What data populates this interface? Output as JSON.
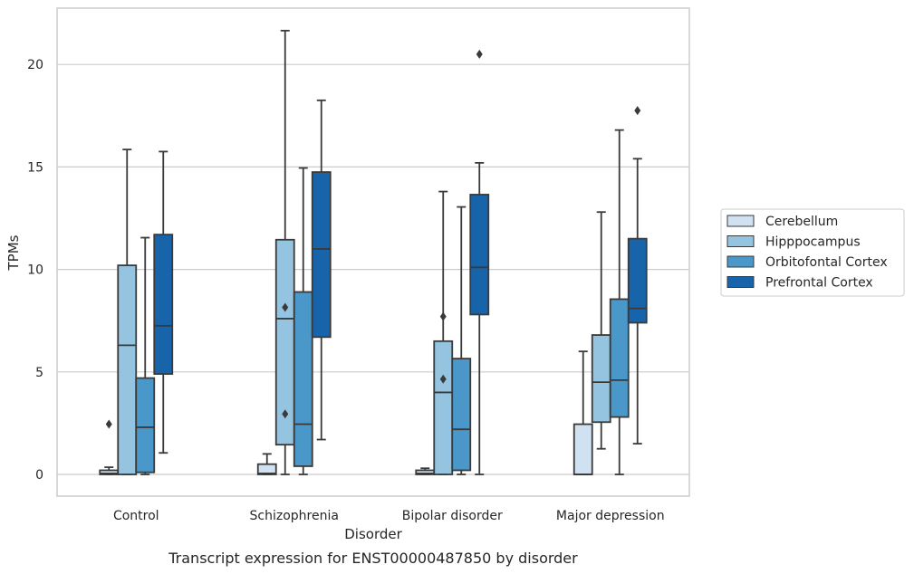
{
  "chart_data": {
    "type": "box",
    "xlabel": "Disorder",
    "ylabel": "TPMs",
    "caption": "Transcript expression for ENST00000487850 by disorder",
    "ylim": [
      -1.05,
      22.6
    ],
    "yticks": [
      0,
      5,
      10,
      15,
      20
    ],
    "grid": true,
    "legend_position": "right",
    "categories": [
      "Control",
      "Schizophrenia",
      "Bipolar disorder",
      "Major depression"
    ],
    "series": [
      {
        "name": "Cerebellum",
        "color": "#d0e1f2",
        "boxes": [
          {
            "whisker_low": 0,
            "q1": 0,
            "median": 0.05,
            "q3": 0.2,
            "whisker_high": 0.35,
            "outliers": [
              2.45
            ]
          },
          {
            "whisker_low": 0,
            "q1": 0,
            "median": 0.05,
            "q3": 0.5,
            "whisker_high": 1.0,
            "outliers": []
          },
          {
            "whisker_low": 0,
            "q1": 0,
            "median": 0.05,
            "q3": 0.2,
            "whisker_high": 0.3,
            "outliers": []
          },
          {
            "whisker_low": 0,
            "q1": 0,
            "median": 0.0,
            "q3": 2.45,
            "whisker_high": 6.0,
            "outliers": []
          }
        ]
      },
      {
        "name": "Hipppocampus",
        "color": "#94c4df",
        "boxes": [
          {
            "whisker_low": 0,
            "q1": 0,
            "median": 6.3,
            "q3": 10.2,
            "whisker_high": 15.85,
            "outliers": []
          },
          {
            "whisker_low": 0,
            "q1": 1.45,
            "median": 7.6,
            "q3": 11.45,
            "whisker_high": 21.65,
            "outliers": [
              8.15,
              2.95
            ]
          },
          {
            "whisker_low": 0,
            "q1": 0,
            "median": 4.0,
            "q3": 6.5,
            "whisker_high": 13.8,
            "outliers": [
              7.7,
              4.65
            ]
          },
          {
            "whisker_low": 1.25,
            "q1": 2.55,
            "median": 4.5,
            "q3": 6.8,
            "whisker_high": 12.8,
            "outliers": []
          }
        ]
      },
      {
        "name": "Orbitofontal Cortex",
        "color": "#4a98c9",
        "boxes": [
          {
            "whisker_low": 0,
            "q1": 0.1,
            "median": 2.3,
            "q3": 4.7,
            "whisker_high": 11.55,
            "outliers": []
          },
          {
            "whisker_low": 0,
            "q1": 0.4,
            "median": 2.45,
            "q3": 8.9,
            "whisker_high": 14.95,
            "outliers": []
          },
          {
            "whisker_low": 0,
            "q1": 0.2,
            "median": 2.2,
            "q3": 5.65,
            "whisker_high": 13.05,
            "outliers": []
          },
          {
            "whisker_low": 0,
            "q1": 2.8,
            "median": 4.6,
            "q3": 8.55,
            "whisker_high": 16.8,
            "outliers": []
          }
        ]
      },
      {
        "name": "Prefrontal Cortex",
        "color": "#1764ab",
        "boxes": [
          {
            "whisker_low": 1.05,
            "q1": 4.9,
            "median": 7.25,
            "q3": 11.7,
            "whisker_high": 15.75,
            "outliers": []
          },
          {
            "whisker_low": 1.7,
            "q1": 6.7,
            "median": 11.0,
            "q3": 14.75,
            "whisker_high": 18.25,
            "outliers": []
          },
          {
            "whisker_low": 0,
            "q1": 7.8,
            "median": 10.1,
            "q3": 13.65,
            "whisker_high": 15.2,
            "outliers": [
              20.5
            ]
          },
          {
            "whisker_low": 1.5,
            "q1": 7.4,
            "median": 8.1,
            "q3": 11.5,
            "whisker_high": 15.4,
            "outliers": [
              17.75
            ]
          }
        ]
      }
    ]
  }
}
